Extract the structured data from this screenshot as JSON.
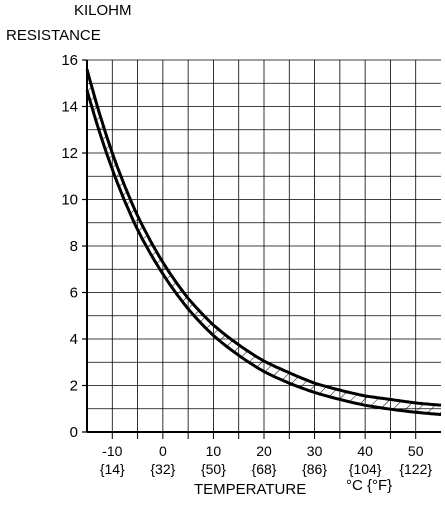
{
  "chart_data": {
    "type": "line",
    "unit_label": "KILOHM",
    "ylabel": "RESISTANCE",
    "xlabel": "TEMPERATURE",
    "xunit": "°C {°F}",
    "xlim": [
      -15,
      55
    ],
    "ylim": [
      0,
      16
    ],
    "grid": true,
    "yticks": [
      "0",
      "2",
      "4",
      "6",
      "8",
      "10",
      "12",
      "14",
      "16"
    ],
    "xticks": [
      {
        "c": -10,
        "label": "-10",
        "f_label": "{14}"
      },
      {
        "c": 0,
        "label": "0",
        "f_label": "{32}"
      },
      {
        "c": 10,
        "label": "10",
        "f_label": "{50}"
      },
      {
        "c": 20,
        "label": "20",
        "f_label": "{68}"
      },
      {
        "c": 30,
        "label": "30",
        "f_label": "{86}"
      },
      {
        "c": 40,
        "label": "40",
        "f_label": "{104}"
      },
      {
        "c": 50,
        "label": "50",
        "f_label": "{122}"
      }
    ],
    "series": [
      {
        "role": "upper-limit",
        "x": [
          -15,
          -10,
          -5,
          0,
          5,
          10,
          15,
          20,
          25,
          30,
          35,
          40,
          45,
          50,
          55
        ],
        "y": [
          15.6,
          12.0,
          9.3,
          7.3,
          5.75,
          4.6,
          3.75,
          3.05,
          2.55,
          2.1,
          1.8,
          1.55,
          1.4,
          1.25,
          1.15
        ]
      },
      {
        "role": "lower-limit",
        "x": [
          -15,
          -10,
          -5,
          0,
          5,
          10,
          15,
          20,
          25,
          30,
          35,
          40,
          45,
          50,
          55
        ],
        "y": [
          14.7,
          11.3,
          8.7,
          6.8,
          5.3,
          4.15,
          3.3,
          2.6,
          2.1,
          1.7,
          1.4,
          1.15,
          0.98,
          0.85,
          0.75
        ]
      }
    ]
  }
}
